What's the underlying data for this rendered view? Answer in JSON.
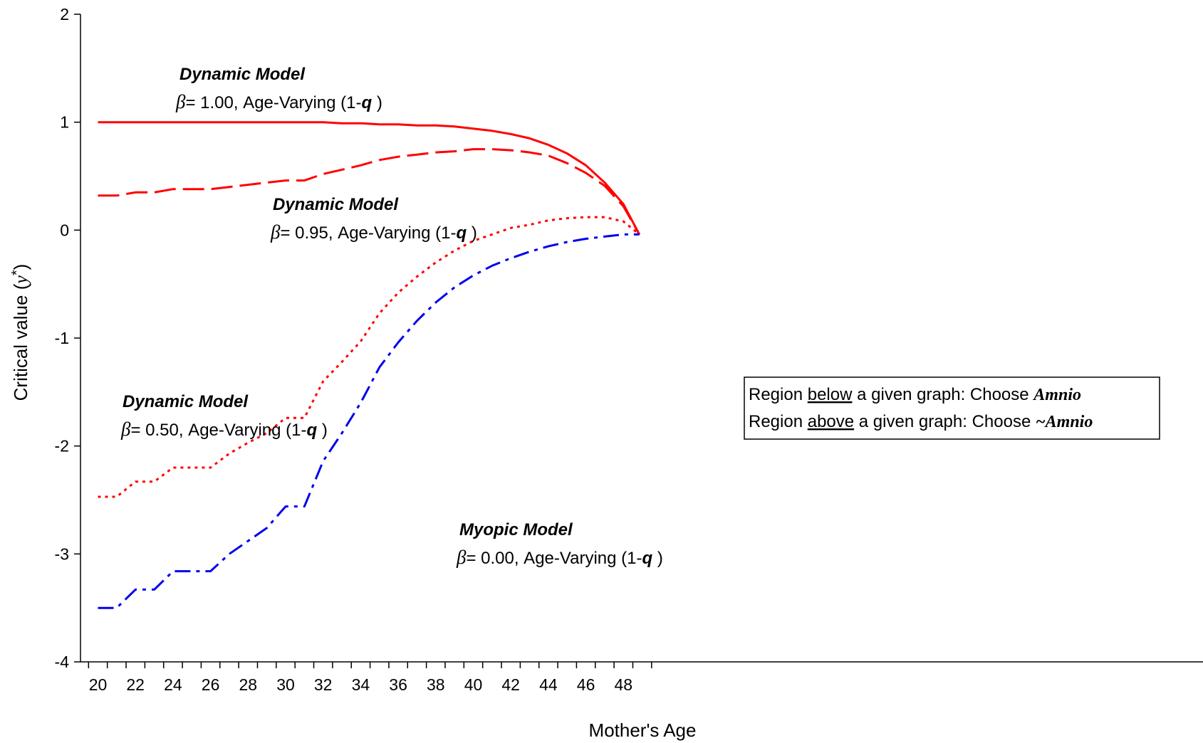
{
  "chart_data": {
    "type": "line",
    "title": "",
    "xlabel": "Mother's Age",
    "ylabel_main": "Critical value (",
    "ylabel_sym": "y",
    "ylabel_star": "*",
    "ylabel_close": ")",
    "xlim": [
      19.5,
      49
    ],
    "ylim": [
      -4,
      2
    ],
    "xticks": [
      20,
      22,
      24,
      26,
      28,
      30,
      32,
      34,
      36,
      38,
      40,
      42,
      44,
      46,
      48
    ],
    "yticks": [
      -4,
      -3,
      -2,
      -1,
      0,
      1,
      2
    ],
    "grid": false,
    "series": [
      {
        "key": "b100",
        "color": "#ff0000",
        "dash": "solid",
        "x": [
          20,
          21,
          22,
          23,
          24,
          25,
          26,
          27,
          28,
          29,
          30,
          31,
          32,
          33,
          34,
          35,
          36,
          37,
          38,
          39,
          40,
          41,
          42,
          43,
          44,
          45,
          46,
          47,
          48,
          48.85
        ],
        "y": [
          1.0,
          1.0,
          1.0,
          1.0,
          1.0,
          1.0,
          1.0,
          1.0,
          1.0,
          1.0,
          1.0,
          1.0,
          1.0,
          0.99,
          0.99,
          0.98,
          0.98,
          0.97,
          0.97,
          0.96,
          0.94,
          0.92,
          0.89,
          0.85,
          0.79,
          0.71,
          0.6,
          0.44,
          0.24,
          -0.04
        ]
      },
      {
        "key": "b095",
        "color": "#ff0000",
        "dash": "dash",
        "x": [
          20,
          21,
          22,
          23,
          24,
          25,
          26,
          27,
          28,
          29,
          30,
          31,
          32,
          33,
          34,
          35,
          36,
          37,
          38,
          39,
          40,
          41,
          42,
          43,
          44,
          45,
          46,
          47,
          48,
          48.85
        ],
        "y": [
          0.32,
          0.32,
          0.35,
          0.35,
          0.38,
          0.38,
          0.38,
          0.4,
          0.42,
          0.44,
          0.46,
          0.46,
          0.52,
          0.56,
          0.6,
          0.65,
          0.68,
          0.7,
          0.72,
          0.73,
          0.75,
          0.75,
          0.74,
          0.72,
          0.69,
          0.62,
          0.53,
          0.41,
          0.22,
          -0.04
        ]
      },
      {
        "key": "b050",
        "color": "#ff0000",
        "dash": "dot",
        "x": [
          20,
          21,
          22,
          23,
          24,
          25,
          26,
          27,
          28,
          29,
          30,
          31,
          32,
          33,
          34,
          35,
          36,
          37,
          38,
          39,
          40,
          41,
          42,
          43,
          44,
          45,
          46,
          47,
          48,
          48.85
        ],
        "y": [
          -2.47,
          -2.47,
          -2.33,
          -2.33,
          -2.2,
          -2.2,
          -2.2,
          -2.07,
          -1.97,
          -1.88,
          -1.74,
          -1.74,
          -1.4,
          -1.22,
          -1.03,
          -0.77,
          -0.58,
          -0.43,
          -0.3,
          -0.19,
          -0.1,
          -0.04,
          0.02,
          0.05,
          0.09,
          0.11,
          0.12,
          0.12,
          0.08,
          -0.04
        ]
      },
      {
        "key": "b000",
        "color": "#0000ee",
        "dash": "dashdot",
        "x": [
          20,
          21,
          22,
          23,
          24,
          25,
          26,
          27,
          28,
          29,
          30,
          31,
          32,
          33,
          34,
          35,
          36,
          37,
          38,
          39,
          40,
          41,
          42,
          43,
          44,
          45,
          46,
          47,
          48,
          48.85
        ],
        "y": [
          -3.5,
          -3.5,
          -3.33,
          -3.33,
          -3.16,
          -3.16,
          -3.16,
          -3.0,
          -2.88,
          -2.76,
          -2.56,
          -2.56,
          -2.14,
          -1.88,
          -1.6,
          -1.27,
          -1.04,
          -0.84,
          -0.67,
          -0.53,
          -0.42,
          -0.33,
          -0.26,
          -0.2,
          -0.15,
          -0.11,
          -0.08,
          -0.06,
          -0.04,
          -0.04
        ]
      }
    ],
    "annotations": [
      {
        "key": "a100",
        "title": "Dynamic Model",
        "beta": "β",
        "text": "= 1.00, Age-Varying (1-",
        "q": "q",
        "close": " )"
      },
      {
        "key": "a095",
        "title": "Dynamic Model",
        "beta": "β",
        "text": "= 0.95, Age-Varying (1-",
        "q": "q",
        "close": " )"
      },
      {
        "key": "a050",
        "title": "Dynamic Model",
        "beta": "β",
        "text": "= 0.50, Age-Varying (1-",
        "q": "q",
        "close": " )"
      },
      {
        "key": "a000",
        "title": "Myopic Model",
        "beta": "β",
        "text": "= 0.00, Age-Varying (1-",
        "q": "q",
        "close": " )"
      }
    ],
    "note": {
      "line1_pre": "Region ",
      "line1_u": "below",
      "line1_mid": " a given graph: Choose ",
      "line1_it": "Amnio",
      "line2_pre": "Region ",
      "line2_u": "above",
      "line2_mid": " a given graph: Choose ",
      "line2_it": "~Amnio"
    }
  }
}
